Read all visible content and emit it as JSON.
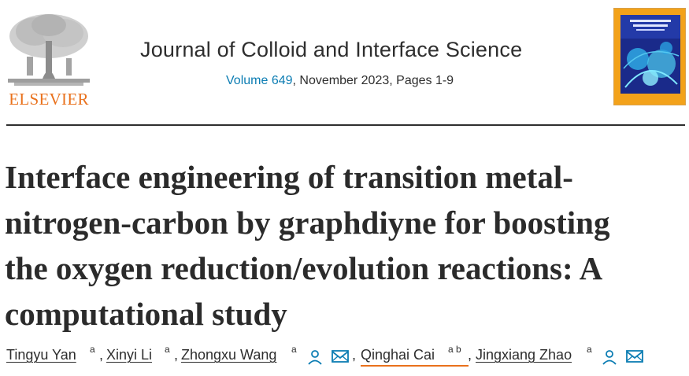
{
  "publisher": {
    "name": "ELSEVIER"
  },
  "journal": {
    "title": "Journal of Colloid and Interface Science",
    "volume_link": "Volume 649",
    "issue_info": ", November 2023, Pages 1-9"
  },
  "cover": {
    "alt": "Journal cover",
    "text": "JOURNAL OF COLLOID AND INTERFACE SCIENCE"
  },
  "article": {
    "title_lines": [
      "Interface engineering of transition metal-",
      "nitrogen-carbon by graphdiyne for boosting",
      "the oxygen reduction/evolution reactions: A",
      "computational study"
    ]
  },
  "authors": [
    {
      "name": "Tingyu Yan",
      "sup": "a"
    },
    {
      "name": "Xinyi Li",
      "sup": "a"
    },
    {
      "name": "Zhongxu Wang",
      "sup": "a"
    },
    {
      "name": "Qinghai Cai",
      "sup": "a b"
    },
    {
      "name": "Jingxiang Zhao",
      "sup": "a"
    }
  ],
  "separators": [
    ",",
    ",",
    ",",
    ","
  ],
  "colors": {
    "accent": "#e9711c",
    "link": "#0c7db3",
    "text": "#2e2e2e"
  },
  "icons": [
    "person-icon",
    "envelope-icon"
  ]
}
